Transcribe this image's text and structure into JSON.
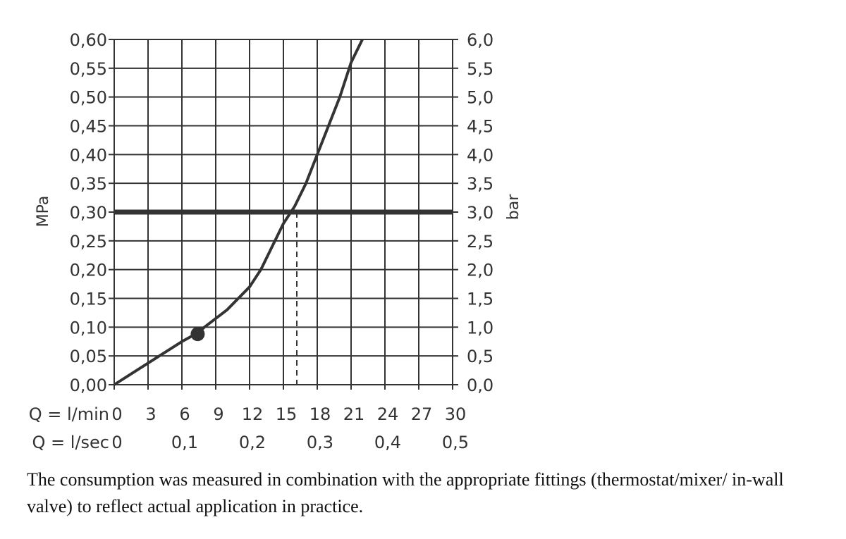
{
  "chart_data": {
    "type": "line",
    "x_unit": "l/min",
    "x_max": 30,
    "y_max_mpa": 0.6,
    "left_axis_label": "MPa",
    "right_axis_label": "bar",
    "left_ticks": [
      "0,00",
      "0,05",
      "0,10",
      "0,15",
      "0,20",
      "0,25",
      "0,30",
      "0,35",
      "0,40",
      "0,45",
      "0,50",
      "0,55",
      "0,60"
    ],
    "right_ticks": [
      "0,0",
      "0,5",
      "1,0",
      "1,5",
      "2,0",
      "2,5",
      "3,0",
      "3,5",
      "4,0",
      "4,5",
      "5,0",
      "5,5",
      "6,0"
    ],
    "x_rows": [
      {
        "label": "Q = l/min",
        "ticks": [
          {
            "x": 0,
            "text": "0"
          },
          {
            "x": 3,
            "text": "3"
          },
          {
            "x": 6,
            "text": "6"
          },
          {
            "x": 9,
            "text": "9"
          },
          {
            "x": 12,
            "text": "12"
          },
          {
            "x": 15,
            "text": "15"
          },
          {
            "x": 18,
            "text": "18"
          },
          {
            "x": 21,
            "text": "21"
          },
          {
            "x": 24,
            "text": "24"
          },
          {
            "x": 27,
            "text": "27"
          },
          {
            "x": 30,
            "text": "30"
          }
        ]
      },
      {
        "label": "Q = l/sec",
        "ticks": [
          {
            "x": 0,
            "text": "0"
          },
          {
            "x": 6,
            "text": "0,1"
          },
          {
            "x": 12,
            "text": "0,2"
          },
          {
            "x": 18,
            "text": "0,3"
          },
          {
            "x": 24,
            "text": "0,4"
          },
          {
            "x": 30,
            "text": "0,5"
          }
        ]
      }
    ],
    "grid": true,
    "series": [
      {
        "points": [
          [
            0,
            0
          ],
          [
            2,
            0.025
          ],
          [
            4,
            0.05
          ],
          [
            6,
            0.075
          ],
          [
            7.4,
            0.09
          ],
          [
            8,
            0.1
          ],
          [
            10,
            0.13
          ],
          [
            12,
            0.17
          ],
          [
            13,
            0.2
          ],
          [
            14,
            0.24
          ],
          [
            15,
            0.28
          ],
          [
            16,
            0.31
          ],
          [
            17,
            0.35
          ],
          [
            18,
            0.4
          ],
          [
            19,
            0.45
          ],
          [
            20,
            0.5
          ],
          [
            21,
            0.56
          ],
          [
            22,
            0.6
          ]
        ]
      }
    ],
    "reference_line_mpa": 0.3,
    "marker_point": [
      7.4,
      0.088
    ],
    "dashed_line_x": 16
  },
  "note": {
    "text": "The consumption was measured in combination with the appropriate fittings (thermostat/mixer/ in-wall valve) to reflect actual application in practice."
  }
}
